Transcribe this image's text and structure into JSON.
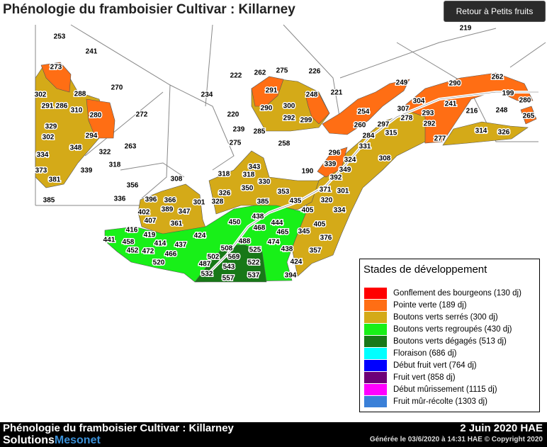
{
  "header": {
    "title": "Phénologie du framboisier Cultivar : Killarney",
    "back_button": "Retour à Petits fruits"
  },
  "map": {
    "labels": [
      253,
      241,
      273,
      270,
      288,
      302,
      291,
      286,
      310,
      280,
      272,
      329,
      294,
      302,
      348,
      322,
      263,
      334,
      318,
      373,
      339,
      381,
      356,
      336,
      385,
      222,
      262,
      275,
      226,
      234,
      291,
      248,
      221,
      290,
      300,
      292,
      299,
      220,
      239,
      285,
      275,
      258,
      219,
      249,
      290,
      262,
      199,
      280,
      304,
      241,
      254,
      307,
      293,
      216,
      248,
      265,
      278,
      292,
      260,
      297,
      315,
      314,
      326,
      284,
      277,
      331,
      296,
      324,
      308,
      339,
      349,
      190,
      392,
      343,
      318,
      318,
      330,
      308,
      350,
      326,
      353,
      371,
      301,
      396,
      366,
      389,
      301,
      328,
      385,
      435,
      320,
      347,
      402,
      405,
      334,
      407,
      450,
      438,
      361,
      444,
      405,
      468,
      416,
      419,
      465,
      345,
      376,
      424,
      441,
      458,
      414,
      437,
      488,
      474,
      452,
      472,
      508,
      525,
      438,
      357,
      466,
      502,
      569,
      487,
      543,
      522,
      424,
      520,
      532,
      557,
      537,
      394
    ]
  },
  "legend": {
    "title": "Stades de développement",
    "items": [
      {
        "label": "Gonflement des bourgeons (130 dj)",
        "color": "#ff0000"
      },
      {
        "label": "Pointe verte (189 dj)",
        "color": "#ff6e14"
      },
      {
        "label": "Boutons verts serrés (300 dj)",
        "color": "#d4aa18"
      },
      {
        "label": "Boutons verts regroupés (430 dj)",
        "color": "#18f018"
      },
      {
        "label": "Boutons verts dégagés (513 dj)",
        "color": "#187818"
      },
      {
        "label": "Floraison (686 dj)",
        "color": "#00ffff"
      },
      {
        "label": "Début fruit vert (764 dj)",
        "color": "#0000ff"
      },
      {
        "label": "Fruit vert (858 dj)",
        "color": "#6e0078"
      },
      {
        "label": "Début mûrissement (1115 dj)",
        "color": "#ff00ff"
      },
      {
        "label": "Fruit mûr-récolte (1303 dj)",
        "color": "#3a80d8"
      }
    ]
  },
  "footer": {
    "title": "Phénologie du framboisier Cultivar : Killarney",
    "brand_a": "Solutions",
    "brand_b": "Mesonet",
    "date": "2 Juin 2020 HAE",
    "generated": "Générée le 03/6/2020 à 14:31 HAE   © Copyright 2020"
  }
}
